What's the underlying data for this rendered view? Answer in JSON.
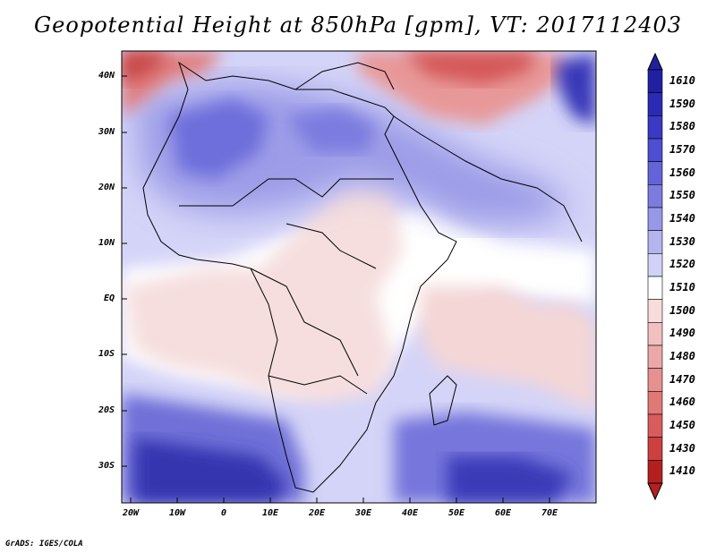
{
  "title": "Geopotential Height at 850hPa [gpm], VT: 2017112403",
  "footer": "GrADS: IGES/COLA",
  "map": {
    "lat_labels": [
      "40N",
      "30N",
      "20N",
      "10N",
      "EQ",
      "10S",
      "20S",
      "30S"
    ],
    "lon_labels": [
      "20W",
      "10W",
      "0",
      "10E",
      "20E",
      "30E",
      "40E",
      "50E",
      "60E",
      "70E"
    ]
  },
  "colorbar": {
    "labels": [
      "1610",
      "1590",
      "1580",
      "1570",
      "1560",
      "1550",
      "1540",
      "1530",
      "1520",
      "1510",
      "1500",
      "1490",
      "1480",
      "1470",
      "1460",
      "1450",
      "1430",
      "1410"
    ],
    "colors": [
      "#2020a0",
      "#2a2ab4",
      "#3a3ac4",
      "#4e4ed0",
      "#6464d8",
      "#7c7ce0",
      "#9898e8",
      "#b4b4f0",
      "#d2d2f8",
      "#ffffff",
      "#f8dcdc",
      "#f2c0c0",
      "#eca8a8",
      "#e69090",
      "#e07878",
      "#d85c5c",
      "#cc4040",
      "#b42020"
    ]
  }
}
